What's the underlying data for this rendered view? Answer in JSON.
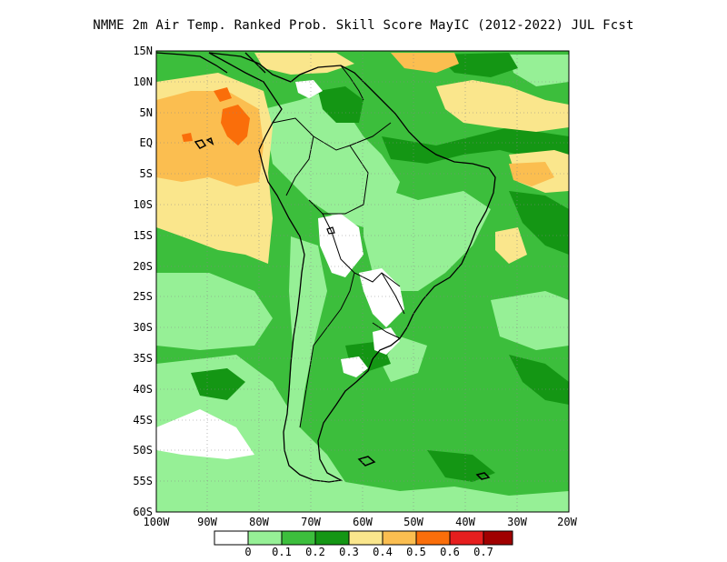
{
  "title": "NMME  2m Air Temp. Ranked Prob. Skill Score MayIC (2012-2022) JUL Fcst",
  "lat_labels": [
    "15N",
    "10N",
    "5N",
    "EQ",
    "5S",
    "10S",
    "15S",
    "20S",
    "25S",
    "30S",
    "35S",
    "40S",
    "45S",
    "50S",
    "55S",
    "60S"
  ],
  "lon_labels": [
    "100W",
    "90W",
    "80W",
    "70W",
    "60W",
    "50W",
    "40W",
    "30W",
    "20W"
  ],
  "colorbar": {
    "colors": [
      "#ffffff",
      "#96f096",
      "#3cbe3c",
      "#149614",
      "#fae68c",
      "#fbbe50",
      "#fa6e0a",
      "#e61e1e",
      "#a00000"
    ],
    "labels": [
      "0",
      "0.1",
      "0.2",
      "0.3",
      "0.4",
      "0.5",
      "0.6",
      "0.7"
    ]
  },
  "palette": {
    "light_green": "#96f096",
    "mid_green": "#3cbe3c",
    "dark_green": "#149614",
    "yellow": "#fae68c",
    "orange": "#fbbe50",
    "red_orange": "#fa6e0a",
    "white": "#ffffff",
    "coast": "#000000"
  }
}
